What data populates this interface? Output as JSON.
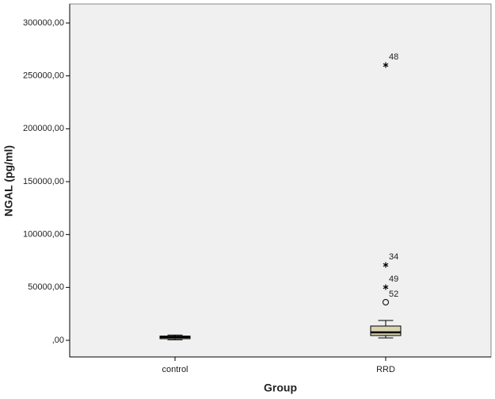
{
  "chart_data": {
    "type": "box",
    "x_label": "Group",
    "y_label": "NGAL (pg/ml)",
    "categories": [
      "control",
      "RRD"
    ],
    "box_color": "#d9d3b1",
    "background": "#f0f0f0",
    "ylim": [
      -15750,
      318000
    ],
    "yticks": [
      {
        "value": 0,
        "label": ",00"
      },
      {
        "value": 50000,
        "label": "50000,00"
      },
      {
        "value": 100000,
        "label": "100000,00"
      },
      {
        "value": 150000,
        "label": "150000,00"
      },
      {
        "value": 200000,
        "label": "200000,00"
      },
      {
        "value": 250000,
        "label": "250000,00"
      },
      {
        "value": 300000,
        "label": "300000,00"
      }
    ],
    "boxes": [
      {
        "whisker_low": 500,
        "q1": 1500,
        "median": 3000,
        "q3": 4000,
        "whisker_high": 5000,
        "outliers": []
      },
      {
        "whisker_low": 2250,
        "q1": 4500,
        "median": 7500,
        "q3": 13500,
        "whisker_high": 18750,
        "outliers": [
          {
            "value": 36000,
            "label": "52",
            "marker": "circle"
          },
          {
            "value": 50250,
            "label": "49",
            "marker": "star"
          },
          {
            "value": 71250,
            "label": "34",
            "marker": "star"
          },
          {
            "value": 260250,
            "label": "48",
            "marker": "star"
          }
        ]
      }
    ]
  }
}
